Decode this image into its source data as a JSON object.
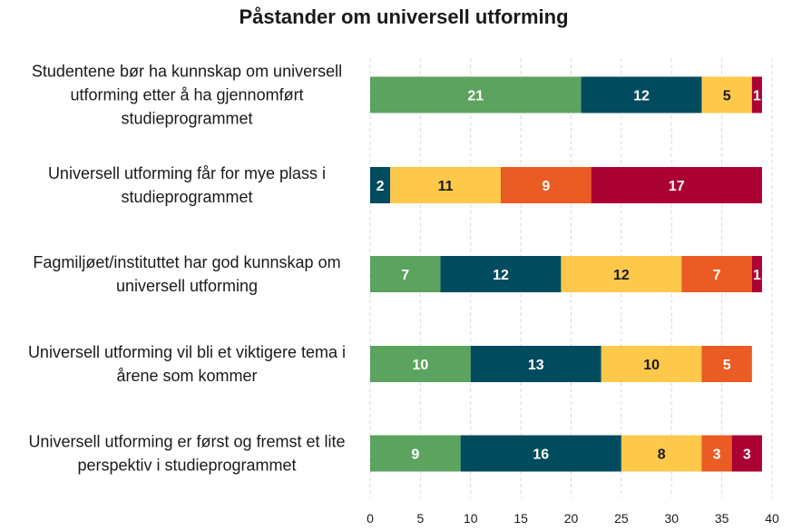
{
  "chart_data": {
    "type": "bar",
    "orientation": "horizontal",
    "stacked": true,
    "title": "Påstander om universell utforming",
    "xlabel": "",
    "ylabel": "",
    "xlim": [
      0,
      40
    ],
    "xticks": [
      0,
      5,
      10,
      15,
      20,
      25,
      30,
      35,
      40
    ],
    "grid": "vertical dashed",
    "categories": [
      [
        "Studentene bør ha kunnskap om universell",
        "utforming etter å ha gjennomført",
        "studieprogrammet"
      ],
      [
        "Universell utforming får for mye plass i",
        "studieprogrammet"
      ],
      [
        "Fagmiljøet/instituttet har god kunnskap om",
        "universell utforming"
      ],
      [
        "Universell utforming vil bli et viktigere tema i",
        "årene som kommer"
      ],
      [
        "Universell utforming er først og fremst et lite",
        "perspektiv i studieprogrammet"
      ]
    ],
    "series": [
      {
        "color": "#5ba35f",
        "label_color": "#ffffff",
        "values": [
          21,
          0,
          7,
          10,
          9
        ]
      },
      {
        "color": "#014b5e",
        "label_color": "#ffffff",
        "values": [
          12,
          2,
          12,
          13,
          16
        ]
      },
      {
        "color": "#fec84a",
        "label_color": "#1a1a1a",
        "values": [
          5,
          11,
          12,
          10,
          8
        ]
      },
      {
        "color": "#eb5b24",
        "label_color": "#ffffff",
        "values": [
          0,
          9,
          7,
          5,
          3
        ]
      },
      {
        "color": "#ab0033",
        "label_color": "#ffffff",
        "values": [
          1,
          17,
          1,
          0,
          3
        ]
      }
    ]
  }
}
